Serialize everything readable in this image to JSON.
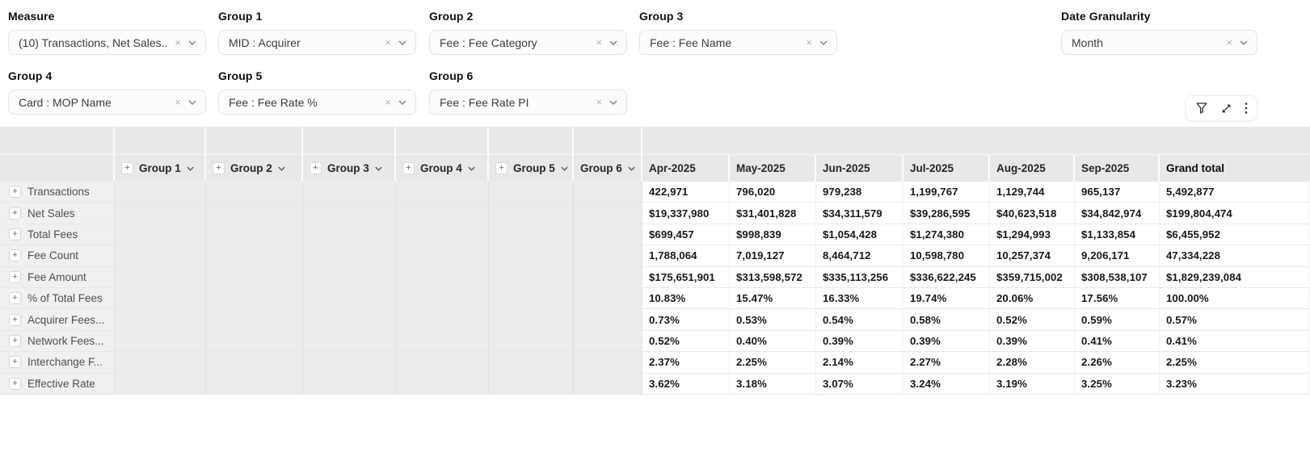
{
  "glyphs": {
    "plus": "+",
    "clear": "×"
  },
  "colors": {
    "header_bg": "#e8e8e8",
    "row_label_bg": "#f0f0f0",
    "group_cell_bg": "#ececec",
    "value_text": "#171717"
  },
  "selectors": [
    {
      "id": "measure",
      "label": "Measure",
      "value": "(10) Transactions, Net Sales..."
    },
    {
      "id": "group-1",
      "label": "Group 1",
      "value": "MID : Acquirer"
    },
    {
      "id": "group-2",
      "label": "Group 2",
      "value": "Fee : Fee Category"
    },
    {
      "id": "group-3",
      "label": "Group 3",
      "value": "Fee : Fee Name"
    },
    {
      "id": "date-granularity",
      "label": "Date Granularity",
      "value": "Month"
    },
    {
      "id": "group-4",
      "label": "Group 4",
      "value": "Card : MOP Name"
    },
    {
      "id": "group-5",
      "label": "Group 5",
      "value": "Fee : Fee Rate %"
    },
    {
      "id": "group-6",
      "label": "Group 6",
      "value": "Fee : Fee Rate PI"
    }
  ],
  "toolbar": {
    "icons": [
      "filter-icon",
      "expand-icon",
      "kebab-menu-icon"
    ]
  },
  "table": {
    "group_columns": [
      {
        "label": "Group 1",
        "expandable": true
      },
      {
        "label": "Group 2",
        "expandable": true
      },
      {
        "label": "Group 3",
        "expandable": true
      },
      {
        "label": "Group 4",
        "expandable": true
      },
      {
        "label": "Group 5",
        "expandable": true
      },
      {
        "label": "Group 6",
        "expandable": false
      }
    ],
    "period_columns": [
      "Apr-2025",
      "May-2025",
      "Jun-2025",
      "Jul-2025",
      "Aug-2025",
      "Sep-2025"
    ],
    "grand_total_label": "Grand total",
    "rows": [
      {
        "label": "Transactions",
        "values": [
          "422,971",
          "796,020",
          "979,238",
          "1,199,767",
          "1,129,744",
          "965,137",
          "5,492,877"
        ]
      },
      {
        "label": "Net Sales",
        "values": [
          "$19,337,980",
          "$31,401,828",
          "$34,311,579",
          "$39,286,595",
          "$40,623,518",
          "$34,842,974",
          "$199,804,474"
        ]
      },
      {
        "label": "Total Fees",
        "values": [
          "$699,457",
          "$998,839",
          "$1,054,428",
          "$1,274,380",
          "$1,294,993",
          "$1,133,854",
          "$6,455,952"
        ]
      },
      {
        "label": "Fee Count",
        "values": [
          "1,788,064",
          "7,019,127",
          "8,464,712",
          "10,598,780",
          "10,257,374",
          "9,206,171",
          "47,334,228"
        ]
      },
      {
        "label": "Fee Amount",
        "values": [
          "$175,651,901",
          "$313,598,572",
          "$335,113,256",
          "$336,622,245",
          "$359,715,002",
          "$308,538,107",
          "$1,829,239,084"
        ]
      },
      {
        "label": "% of Total Fees",
        "values": [
          "10.83%",
          "15.47%",
          "16.33%",
          "19.74%",
          "20.06%",
          "17.56%",
          "100.00%"
        ]
      },
      {
        "label": "Acquirer Fees...",
        "values": [
          "0.73%",
          "0.53%",
          "0.54%",
          "0.58%",
          "0.52%",
          "0.59%",
          "0.57%"
        ]
      },
      {
        "label": "Network Fees...",
        "values": [
          "0.52%",
          "0.40%",
          "0.39%",
          "0.39%",
          "0.39%",
          "0.41%",
          "0.41%"
        ]
      },
      {
        "label": "Interchange F...",
        "values": [
          "2.37%",
          "2.25%",
          "2.14%",
          "2.27%",
          "2.28%",
          "2.26%",
          "2.25%"
        ]
      },
      {
        "label": "Effective Rate",
        "values": [
          "3.62%",
          "3.18%",
          "3.07%",
          "3.24%",
          "3.19%",
          "3.25%",
          "3.23%"
        ]
      }
    ]
  }
}
